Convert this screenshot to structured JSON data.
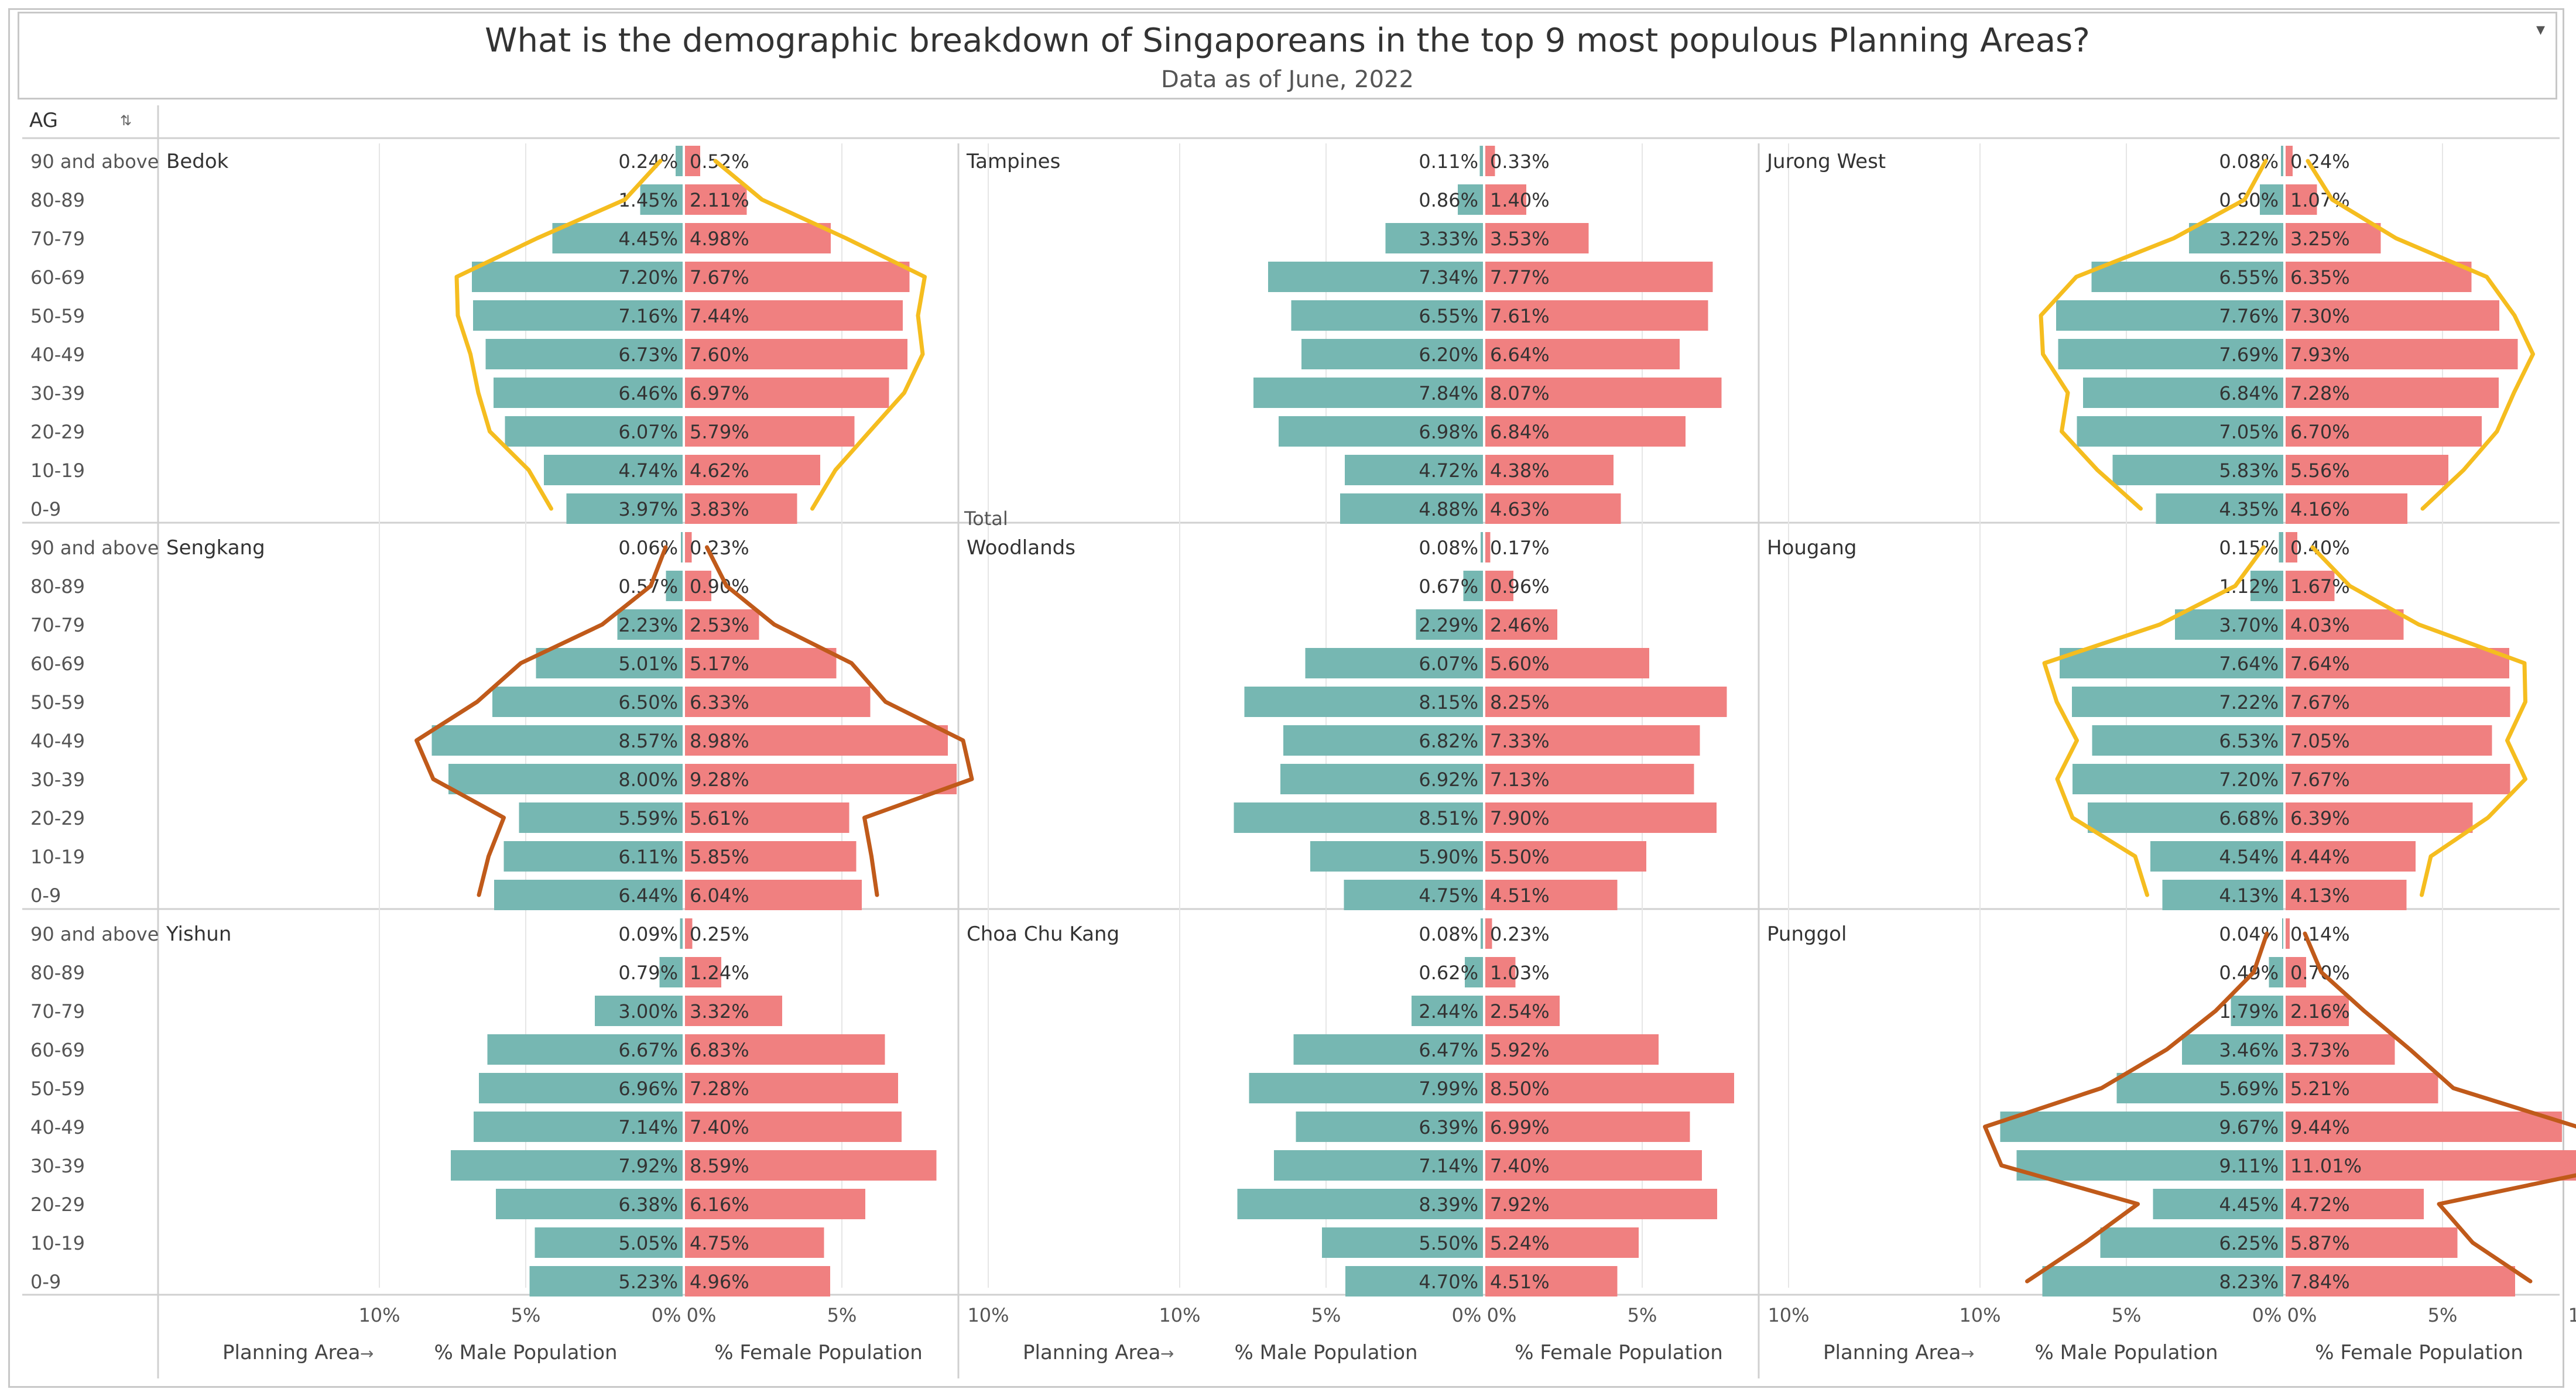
{
  "title": "What is the demographic breakdown of Singaporeans in the top 9 most populous Planning Areas?",
  "subtitle": "Data as of June, 2022",
  "row_header": "AG",
  "colors": {
    "male": "#76b7b2",
    "female": "#f08080",
    "gridline": "#e6e6e6",
    "axis_text": "#555555",
    "annotation_yellow": "#f5bd1f",
    "annotation_brown": "#c05a1a"
  },
  "footer": {
    "planning_area_label": "Planning Area",
    "male_label": "% Male Population",
    "female_label": "% Female Population",
    "male_ticks": [
      "10%",
      "5%",
      "0%"
    ],
    "female_ticks": [
      "0%",
      "5%",
      "10%"
    ]
  },
  "chart_data": {
    "type": "bar",
    "subtype": "population-pyramid",
    "age_groups": [
      "90 and above",
      "80-89",
      "70-79",
      "60-69",
      "50-59",
      "40-49",
      "30-39",
      "20-29",
      "10-19",
      "0-9"
    ],
    "xlim": [
      0,
      12
    ],
    "unit": "%",
    "series_names": [
      "% Male Population",
      "% Female Population"
    ],
    "panels": [
      {
        "area": "Bedok",
        "male": [
          0.24,
          1.45,
          4.45,
          7.2,
          7.16,
          6.73,
          6.46,
          6.07,
          4.74,
          3.97
        ],
        "female": [
          0.52,
          2.11,
          4.98,
          7.67,
          7.44,
          7.6,
          6.97,
          5.79,
          4.62,
          3.83
        ],
        "male_labels": [
          "0.24%",
          "1.45%",
          "4.45%",
          "7.20%",
          "7.16%",
          "6.73%",
          "6.46%",
          "6.07%",
          "4.74%",
          "3.97%"
        ],
        "female_labels": [
          "0.52%",
          "2.11%",
          "4.98%",
          "7.67%",
          "7.44%",
          "7.60%",
          "6.97%",
          "5.79%",
          "4.62%",
          "3.83%"
        ],
        "annotation": "yellow-vase"
      },
      {
        "area": "Tampines",
        "footnote": "Total",
        "male": [
          0.11,
          0.86,
          3.33,
          7.34,
          6.55,
          6.2,
          7.84,
          6.98,
          4.72,
          4.88
        ],
        "female": [
          0.33,
          1.4,
          3.53,
          7.77,
          7.61,
          6.64,
          8.07,
          6.84,
          4.38,
          4.63
        ],
        "male_labels": [
          "0.11%",
          "0.86%",
          "3.33%",
          "7.34%",
          "6.55%",
          "6.20%",
          "7.84%",
          "6.98%",
          "4.72%",
          "4.88%"
        ],
        "female_labels": [
          "0.33%",
          "1.40%",
          "3.53%",
          "7.77%",
          "7.61%",
          "6.64%",
          "8.07%",
          "6.84%",
          "4.38%",
          "4.63%"
        ],
        "annotation": null
      },
      {
        "area": "Jurong West",
        "male": [
          0.08,
          0.8,
          3.22,
          6.55,
          7.76,
          7.69,
          6.84,
          7.05,
          5.83,
          4.35
        ],
        "female": [
          0.24,
          1.07,
          3.25,
          6.35,
          7.3,
          7.93,
          7.28,
          6.7,
          5.56,
          4.16
        ],
        "male_labels": [
          "0.08%",
          "0.80%",
          "3.22%",
          "6.55%",
          "7.76%",
          "7.69%",
          "6.84%",
          "7.05%",
          "5.83%",
          "4.35%"
        ],
        "female_labels": [
          "0.24%",
          "1.07%",
          "3.25%",
          "6.35%",
          "7.30%",
          "7.93%",
          "7.28%",
          "6.70%",
          "5.56%",
          "4.16%"
        ],
        "annotation": "yellow-vase"
      },
      {
        "area": "Sengkang",
        "male": [
          0.06,
          0.57,
          2.23,
          5.01,
          6.5,
          8.57,
          8.0,
          5.59,
          6.11,
          6.44
        ],
        "female": [
          0.23,
          0.9,
          2.53,
          5.17,
          6.33,
          8.98,
          9.28,
          5.61,
          5.85,
          6.04
        ],
        "male_labels": [
          "0.06%",
          "0.57%",
          "2.23%",
          "5.01%",
          "6.50%",
          "8.57%",
          "8.00%",
          "5.59%",
          "6.11%",
          "6.44%"
        ],
        "female_labels": [
          "0.23%",
          "0.90%",
          "2.53%",
          "5.17%",
          "6.33%",
          "8.98%",
          "9.28%",
          "5.61%",
          "5.85%",
          "6.04%"
        ],
        "annotation": "brown-bulge"
      },
      {
        "area": "Woodlands",
        "male": [
          0.08,
          0.67,
          2.29,
          6.07,
          8.15,
          6.82,
          6.92,
          8.51,
          5.9,
          4.75
        ],
        "female": [
          0.17,
          0.96,
          2.46,
          5.6,
          8.25,
          7.33,
          7.13,
          7.9,
          5.5,
          4.51
        ],
        "male_labels": [
          "0.08%",
          "0.67%",
          "2.29%",
          "6.07%",
          "8.15%",
          "6.82%",
          "6.92%",
          "8.51%",
          "5.90%",
          "4.75%"
        ],
        "female_labels": [
          "0.17%",
          "0.96%",
          "2.46%",
          "5.60%",
          "8.25%",
          "7.33%",
          "7.13%",
          "7.90%",
          "5.50%",
          "4.51%"
        ],
        "annotation": null
      },
      {
        "area": "Hougang",
        "male": [
          0.15,
          1.12,
          3.7,
          7.64,
          7.22,
          6.53,
          7.2,
          6.68,
          4.54,
          4.13
        ],
        "female": [
          0.4,
          1.67,
          4.03,
          7.64,
          7.67,
          7.05,
          7.67,
          6.39,
          4.44,
          4.13
        ],
        "male_labels": [
          "0.15%",
          "1.12%",
          "3.70%",
          "7.64%",
          "7.22%",
          "6.53%",
          "7.20%",
          "6.68%",
          "4.54%",
          "4.13%"
        ],
        "female_labels": [
          "0.40%",
          "1.67%",
          "4.03%",
          "7.64%",
          "7.67%",
          "7.05%",
          "7.67%",
          "6.39%",
          "4.44%",
          "4.13%"
        ],
        "annotation": "yellow-vase"
      },
      {
        "area": "Yishun",
        "male": [
          0.09,
          0.79,
          3.0,
          6.67,
          6.96,
          7.14,
          7.92,
          6.38,
          5.05,
          5.23
        ],
        "female": [
          0.25,
          1.24,
          3.32,
          6.83,
          7.28,
          7.4,
          8.59,
          6.16,
          4.75,
          4.96
        ],
        "male_labels": [
          "0.09%",
          "0.79%",
          "3.00%",
          "6.67%",
          "6.96%",
          "7.14%",
          "7.92%",
          "6.38%",
          "5.05%",
          "5.23%"
        ],
        "female_labels": [
          "0.25%",
          "1.24%",
          "3.32%",
          "6.83%",
          "7.28%",
          "7.40%",
          "8.59%",
          "6.16%",
          "4.75%",
          "4.96%"
        ],
        "annotation": null
      },
      {
        "area": "Choa Chu Kang",
        "male": [
          0.08,
          0.62,
          2.44,
          6.47,
          7.99,
          6.39,
          7.14,
          8.39,
          5.5,
          4.7
        ],
        "female": [
          0.23,
          1.03,
          2.54,
          5.92,
          8.5,
          6.99,
          7.4,
          7.92,
          5.24,
          4.51
        ],
        "male_labels": [
          "0.08%",
          "0.62%",
          "2.44%",
          "6.47%",
          "7.99%",
          "6.39%",
          "7.14%",
          "8.39%",
          "5.50%",
          "4.70%"
        ],
        "female_labels": [
          "0.23%",
          "1.03%",
          "2.54%",
          "5.92%",
          "8.50%",
          "6.99%",
          "7.40%",
          "7.92%",
          "5.24%",
          "4.51%"
        ],
        "annotation": null
      },
      {
        "area": "Punggol",
        "male": [
          0.04,
          0.49,
          1.79,
          3.46,
          5.69,
          9.67,
          9.11,
          4.45,
          6.25,
          8.23
        ],
        "female": [
          0.14,
          0.7,
          2.16,
          3.73,
          5.21,
          9.44,
          11.01,
          4.72,
          5.87,
          7.84
        ],
        "male_labels": [
          "0.04%",
          "0.49%",
          "1.79%",
          "3.46%",
          "5.69%",
          "9.67%",
          "9.11%",
          "4.45%",
          "6.25%",
          "8.23%"
        ],
        "female_labels": [
          "0.14%",
          "0.70%",
          "2.16%",
          "3.73%",
          "5.21%",
          "9.44%",
          "11.01%",
          "4.72%",
          "5.87%",
          "7.84%"
        ],
        "annotation": "brown-bulge"
      }
    ]
  }
}
